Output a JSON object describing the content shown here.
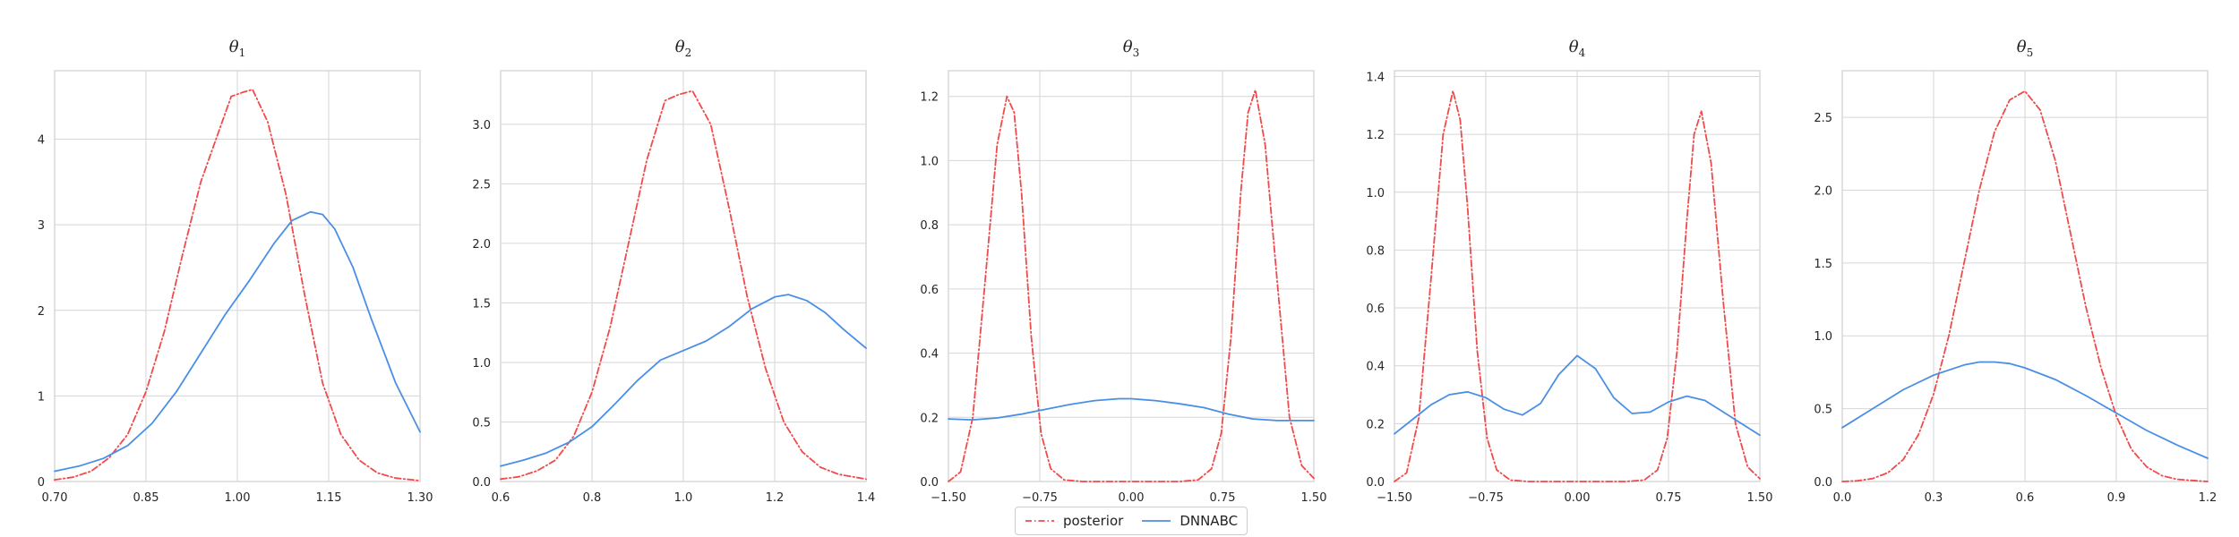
{
  "chart_data": [
    {
      "type": "line",
      "title": "θ",
      "title_sub": "1",
      "xlim": [
        0.7,
        1.3
      ],
      "ylim": [
        0,
        4.8
      ],
      "xticks": [
        0.7,
        0.85,
        1.0,
        1.15,
        1.3
      ],
      "xtick_labels": [
        "0.70",
        "0.85",
        "1.00",
        "1.15",
        "1.30"
      ],
      "yticks": [
        0,
        1,
        2,
        3,
        4
      ],
      "ytick_labels": [
        "0",
        "1",
        "2",
        "3",
        "4"
      ],
      "grid": true,
      "series": [
        {
          "name": "posterior",
          "color": "#f04a4a",
          "dash": "dashdot",
          "x": [
            0.7,
            0.73,
            0.76,
            0.79,
            0.82,
            0.85,
            0.88,
            0.91,
            0.94,
            0.97,
            0.99,
            1.01,
            1.025,
            1.05,
            1.08,
            1.11,
            1.14,
            1.17,
            1.2,
            1.23,
            1.26,
            1.3
          ],
          "y": [
            0.02,
            0.05,
            0.12,
            0.28,
            0.55,
            1.05,
            1.75,
            2.65,
            3.5,
            4.1,
            4.5,
            4.55,
            4.58,
            4.2,
            3.35,
            2.2,
            1.15,
            0.55,
            0.25,
            0.1,
            0.04,
            0.01
          ]
        },
        {
          "name": "DNNABC",
          "color": "#4a8fe6",
          "dash": "solid",
          "x": [
            0.7,
            0.74,
            0.78,
            0.82,
            0.86,
            0.9,
            0.94,
            0.98,
            1.02,
            1.06,
            1.09,
            1.12,
            1.14,
            1.16,
            1.19,
            1.22,
            1.26,
            1.3
          ],
          "y": [
            0.12,
            0.18,
            0.27,
            0.42,
            0.68,
            1.05,
            1.5,
            1.95,
            2.35,
            2.78,
            3.05,
            3.15,
            3.12,
            2.95,
            2.5,
            1.9,
            1.15,
            0.58
          ]
        }
      ]
    },
    {
      "type": "line",
      "title": "θ",
      "title_sub": "2",
      "xlim": [
        0.6,
        1.4
      ],
      "ylim": [
        0,
        3.45
      ],
      "xticks": [
        0.6,
        0.8,
        1.0,
        1.2,
        1.4
      ],
      "xtick_labels": [
        "0.6",
        "0.8",
        "1.0",
        "1.2",
        "1.4"
      ],
      "yticks": [
        0,
        0.5,
        1.0,
        1.5,
        2.0,
        2.5,
        3.0
      ],
      "ytick_labels": [
        "0.0",
        "0.5",
        "1.0",
        "1.5",
        "2.0",
        "2.5",
        "3.0"
      ],
      "grid": true,
      "series": [
        {
          "name": "posterior",
          "color": "#f04a4a",
          "dash": "dashdot",
          "x": [
            0.6,
            0.64,
            0.68,
            0.72,
            0.76,
            0.8,
            0.84,
            0.88,
            0.92,
            0.96,
            0.99,
            1.02,
            1.06,
            1.1,
            1.14,
            1.18,
            1.22,
            1.26,
            1.3,
            1.34,
            1.4
          ],
          "y": [
            0.02,
            0.04,
            0.09,
            0.18,
            0.38,
            0.75,
            1.3,
            2.0,
            2.7,
            3.2,
            3.25,
            3.28,
            3.0,
            2.3,
            1.55,
            0.95,
            0.5,
            0.25,
            0.12,
            0.06,
            0.02
          ]
        },
        {
          "name": "DNNABC",
          "color": "#4a8fe6",
          "dash": "solid",
          "x": [
            0.6,
            0.65,
            0.7,
            0.75,
            0.8,
            0.85,
            0.9,
            0.95,
            1.0,
            1.05,
            1.1,
            1.15,
            1.2,
            1.23,
            1.27,
            1.31,
            1.35,
            1.4
          ],
          "y": [
            0.13,
            0.18,
            0.24,
            0.33,
            0.46,
            0.65,
            0.85,
            1.02,
            1.1,
            1.18,
            1.3,
            1.45,
            1.55,
            1.57,
            1.52,
            1.42,
            1.28,
            1.12
          ]
        }
      ]
    },
    {
      "type": "line",
      "title": "θ",
      "title_sub": "3",
      "xlim": [
        -1.5,
        1.5
      ],
      "ylim": [
        0,
        1.28
      ],
      "xticks": [
        -1.5,
        -0.75,
        0.0,
        0.75,
        1.5
      ],
      "xtick_labels": [
        "−1.50",
        "−0.75",
        "0.00",
        "0.75",
        "1.50"
      ],
      "yticks": [
        0,
        0.2,
        0.4,
        0.6,
        0.8,
        1.0,
        1.2
      ],
      "ytick_labels": [
        "0.0",
        "0.2",
        "0.4",
        "0.6",
        "0.8",
        "1.0",
        "1.2"
      ],
      "grid": true,
      "series": [
        {
          "name": "posterior",
          "color": "#f04a4a",
          "dash": "dashdot",
          "x": [
            -1.5,
            -1.4,
            -1.3,
            -1.2,
            -1.1,
            -1.02,
            -0.96,
            -0.9,
            -0.82,
            -0.74,
            -0.66,
            -0.55,
            -0.4,
            0.0,
            0.4,
            0.55,
            0.66,
            0.74,
            0.82,
            0.9,
            0.96,
            1.02,
            1.1,
            1.2,
            1.3,
            1.4,
            1.5
          ],
          "y": [
            0.0,
            0.03,
            0.2,
            0.62,
            1.05,
            1.2,
            1.15,
            0.9,
            0.45,
            0.15,
            0.04,
            0.005,
            0.0,
            0.0,
            0.0,
            0.005,
            0.04,
            0.15,
            0.45,
            0.9,
            1.15,
            1.22,
            1.05,
            0.62,
            0.2,
            0.05,
            0.01
          ]
        },
        {
          "name": "DNNABC",
          "color": "#4a8fe6",
          "dash": "solid",
          "x": [
            -1.5,
            -1.3,
            -1.1,
            -0.9,
            -0.7,
            -0.5,
            -0.3,
            -0.1,
            0.0,
            0.2,
            0.4,
            0.6,
            0.8,
            1.0,
            1.2,
            1.5
          ],
          "y": [
            0.195,
            0.192,
            0.198,
            0.21,
            0.225,
            0.24,
            0.252,
            0.258,
            0.258,
            0.252,
            0.242,
            0.23,
            0.21,
            0.195,
            0.19,
            0.19
          ]
        }
      ]
    },
    {
      "type": "line",
      "title": "θ",
      "title_sub": "4",
      "xlim": [
        -1.5,
        1.5
      ],
      "ylim": [
        0,
        1.42
      ],
      "xticks": [
        -1.5,
        -0.75,
        0.0,
        0.75,
        1.5
      ],
      "xtick_labels": [
        "−1.50",
        "−0.75",
        "0.00",
        "0.75",
        "1.50"
      ],
      "yticks": [
        0,
        0.2,
        0.4,
        0.6,
        0.8,
        1.0,
        1.2,
        1.4
      ],
      "ytick_labels": [
        "0.0",
        "0.2",
        "0.4",
        "0.6",
        "0.8",
        "1.0",
        "1.2",
        "1.4"
      ],
      "grid": true,
      "series": [
        {
          "name": "posterior",
          "color": "#f04a4a",
          "dash": "dashdot",
          "x": [
            -1.5,
            -1.4,
            -1.3,
            -1.2,
            -1.1,
            -1.02,
            -0.96,
            -0.9,
            -0.82,
            -0.74,
            -0.66,
            -0.55,
            -0.4,
            0.0,
            0.4,
            0.55,
            0.66,
            0.74,
            0.82,
            0.9,
            0.96,
            1.02,
            1.1,
            1.2,
            1.3,
            1.4,
            1.5
          ],
          "y": [
            0.0,
            0.03,
            0.22,
            0.7,
            1.2,
            1.35,
            1.25,
            0.95,
            0.45,
            0.15,
            0.04,
            0.005,
            0.0,
            0.0,
            0.0,
            0.005,
            0.04,
            0.15,
            0.45,
            0.9,
            1.2,
            1.28,
            1.1,
            0.62,
            0.2,
            0.05,
            0.01
          ]
        },
        {
          "name": "DNNABC",
          "color": "#4a8fe6",
          "dash": "solid",
          "x": [
            -1.5,
            -1.35,
            -1.2,
            -1.05,
            -0.9,
            -0.75,
            -0.6,
            -0.45,
            -0.3,
            -0.15,
            0.0,
            0.15,
            0.3,
            0.45,
            0.6,
            0.75,
            0.9,
            1.05,
            1.2,
            1.35,
            1.5
          ],
          "y": [
            0.165,
            0.215,
            0.265,
            0.3,
            0.31,
            0.29,
            0.25,
            0.23,
            0.27,
            0.37,
            0.435,
            0.39,
            0.29,
            0.235,
            0.24,
            0.275,
            0.295,
            0.28,
            0.24,
            0.2,
            0.16
          ]
        }
      ]
    },
    {
      "type": "line",
      "title": "θ",
      "title_sub": "5",
      "xlim": [
        0.0,
        1.2
      ],
      "ylim": [
        0,
        2.82
      ],
      "xticks": [
        0.0,
        0.3,
        0.6,
        0.9,
        1.2
      ],
      "xtick_labels": [
        "0.0",
        "0.3",
        "0.6",
        "0.9",
        "1.2"
      ],
      "yticks": [
        0,
        0.5,
        1.0,
        1.5,
        2.0,
        2.5
      ],
      "ytick_labels": [
        "0.0",
        "0.5",
        "1.0",
        "1.5",
        "2.0",
        "2.5"
      ],
      "grid": true,
      "series": [
        {
          "name": "posterior",
          "color": "#f04a4a",
          "dash": "dashdot",
          "x": [
            0.0,
            0.05,
            0.1,
            0.15,
            0.2,
            0.25,
            0.3,
            0.35,
            0.4,
            0.45,
            0.5,
            0.55,
            0.6,
            0.65,
            0.7,
            0.75,
            0.8,
            0.85,
            0.9,
            0.95,
            1.0,
            1.05,
            1.1,
            1.2
          ],
          "y": [
            0.0,
            0.005,
            0.02,
            0.06,
            0.15,
            0.32,
            0.6,
            1.0,
            1.5,
            2.0,
            2.4,
            2.62,
            2.68,
            2.55,
            2.2,
            1.7,
            1.2,
            0.78,
            0.45,
            0.22,
            0.1,
            0.04,
            0.015,
            0.0
          ]
        },
        {
          "name": "DNNABC",
          "color": "#4a8fe6",
          "dash": "solid",
          "x": [
            0.0,
            0.1,
            0.2,
            0.3,
            0.4,
            0.45,
            0.5,
            0.55,
            0.6,
            0.7,
            0.8,
            0.9,
            1.0,
            1.1,
            1.2
          ],
          "y": [
            0.37,
            0.5,
            0.63,
            0.73,
            0.8,
            0.82,
            0.82,
            0.81,
            0.78,
            0.7,
            0.59,
            0.47,
            0.35,
            0.25,
            0.16
          ]
        }
      ]
    }
  ],
  "legend": {
    "placement": "bottom-center",
    "entries": [
      {
        "label": "posterior",
        "color": "#f04a4a",
        "dash": "dashdot"
      },
      {
        "label": "DNNABC",
        "color": "#4a8fe6",
        "dash": "solid"
      }
    ]
  }
}
